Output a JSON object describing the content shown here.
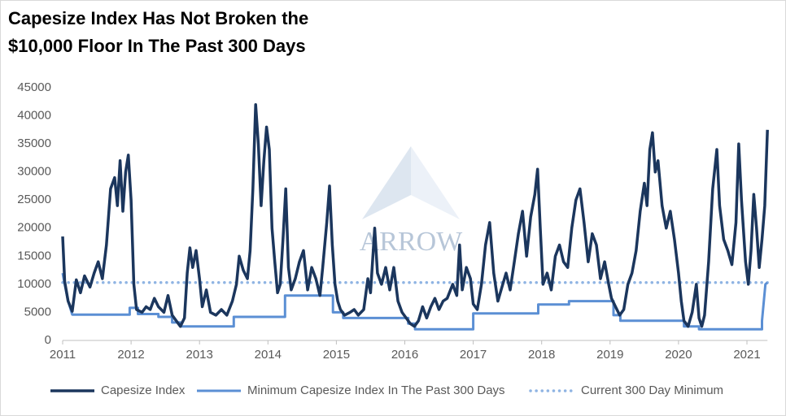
{
  "chart_data": {
    "type": "line",
    "title": [
      "Capesize Index Has Not Broken the",
      "$10,000 Floor In The Past 300 Days"
    ],
    "watermark": "ARROW",
    "xlim": [
      2011,
      2021.3
    ],
    "xticks": [
      2011,
      2012,
      2013,
      2014,
      2015,
      2016,
      2017,
      2018,
      2019,
      2020,
      2021
    ],
    "ylim": [
      0,
      45000
    ],
    "yticks": [
      0,
      5000,
      10000,
      15000,
      20000,
      25000,
      30000,
      35000,
      40000,
      45000
    ],
    "grid": false,
    "legend": "bottom",
    "series": [
      {
        "name": "Capesize Index",
        "color": "#1b365d",
        "style": "solid",
        "x": [
          2011.0,
          2011.03,
          2011.08,
          2011.14,
          2011.2,
          2011.26,
          2011.32,
          2011.4,
          2011.46,
          2011.52,
          2011.58,
          2011.64,
          2011.7,
          2011.76,
          2011.8,
          2011.84,
          2011.88,
          2011.92,
          2011.96,
          2012.0,
          2012.04,
          2012.08,
          2012.16,
          2012.22,
          2012.28,
          2012.34,
          2012.4,
          2012.48,
          2012.54,
          2012.6,
          2012.66,
          2012.72,
          2012.78,
          2012.82,
          2012.86,
          2012.9,
          2012.95,
          2013.0,
          2013.04,
          2013.1,
          2013.16,
          2013.24,
          2013.32,
          2013.4,
          2013.48,
          2013.54,
          2013.58,
          2013.64,
          2013.7,
          2013.74,
          2013.78,
          2013.82,
          2013.86,
          2013.9,
          2013.94,
          2013.98,
          2014.02,
          2014.06,
          2014.1,
          2014.14,
          2014.18,
          2014.22,
          2014.26,
          2014.3,
          2014.34,
          2014.4,
          2014.46,
          2014.52,
          2014.58,
          2014.64,
          2014.7,
          2014.76,
          2014.8,
          2014.86,
          2014.9,
          2014.94,
          2014.98,
          2015.02,
          2015.06,
          2015.12,
          2015.2,
          2015.26,
          2015.32,
          2015.4,
          2015.46,
          2015.5,
          2015.56,
          2015.6,
          2015.66,
          2015.72,
          2015.78,
          2015.84,
          2015.9,
          2015.96,
          2016.02,
          2016.08,
          2016.14,
          2016.2,
          2016.26,
          2016.32,
          2016.38,
          2016.44,
          2016.5,
          2016.56,
          2016.62,
          2016.7,
          2016.76,
          2016.8,
          2016.84,
          2016.9,
          2016.96,
          2017.0,
          2017.06,
          2017.12,
          2017.18,
          2017.24,
          2017.3,
          2017.36,
          2017.42,
          2017.48,
          2017.54,
          2017.6,
          2017.66,
          2017.72,
          2017.78,
          2017.84,
          2017.9,
          2017.94,
          2017.98,
          2018.02,
          2018.08,
          2018.14,
          2018.2,
          2018.26,
          2018.32,
          2018.38,
          2018.44,
          2018.5,
          2018.56,
          2018.62,
          2018.68,
          2018.74,
          2018.8,
          2018.86,
          2018.92,
          2018.98,
          2019.02,
          2019.08,
          2019.14,
          2019.2,
          2019.26,
          2019.32,
          2019.38,
          2019.44,
          2019.5,
          2019.54,
          2019.58,
          2019.62,
          2019.66,
          2019.7,
          2019.76,
          2019.82,
          2019.88,
          2019.94,
          2020.0,
          2020.04,
          2020.08,
          2020.14,
          2020.2,
          2020.26,
          2020.3,
          2020.34,
          2020.38,
          2020.44,
          2020.5,
          2020.56,
          2020.6,
          2020.66,
          2020.72,
          2020.78,
          2020.84,
          2020.88,
          2020.92,
          2020.98,
          2021.02,
          2021.06,
          2021.1,
          2021.14,
          2021.18,
          2021.22,
          2021.26,
          2021.3
        ],
        "values": [
          18500,
          10500,
          7000,
          5200,
          10800,
          8500,
          11500,
          9500,
          12000,
          14000,
          11000,
          17000,
          27000,
          29000,
          24000,
          32000,
          23000,
          30000,
          33000,
          25000,
          10000,
          5500,
          5000,
          6000,
          5500,
          7500,
          6000,
          5000,
          8000,
          4500,
          3500,
          2500,
          4000,
          12000,
          16500,
          13000,
          16000,
          11000,
          6000,
          9000,
          5000,
          4500,
          5500,
          4500,
          7000,
          10000,
          15000,
          12500,
          11000,
          16000,
          27000,
          42000,
          35000,
          24000,
          32000,
          38000,
          34000,
          20000,
          14000,
          8500,
          10000,
          18000,
          27000,
          13000,
          9000,
          11000,
          14000,
          16000,
          9000,
          13000,
          11000,
          8000,
          13000,
          21000,
          27500,
          17000,
          10000,
          7000,
          5500,
          4500,
          5000,
          5500,
          4500,
          5500,
          11000,
          8500,
          20000,
          12000,
          10000,
          13000,
          9000,
          13000,
          7000,
          5000,
          4000,
          3000,
          2500,
          3500,
          6000,
          4000,
          6000,
          7500,
          5500,
          7000,
          7500,
          10000,
          8000,
          17000,
          9000,
          13000,
          11000,
          6500,
          5500,
          10000,
          17000,
          21000,
          12000,
          7000,
          9500,
          12000,
          9000,
          14000,
          19000,
          23000,
          15000,
          22000,
          26000,
          30500,
          20000,
          10000,
          12000,
          9000,
          15000,
          17000,
          14000,
          13000,
          20000,
          25000,
          27000,
          21000,
          14000,
          19000,
          17000,
          11000,
          14000,
          10000,
          7500,
          6000,
          4500,
          5500,
          10000,
          12000,
          16000,
          23000,
          28000,
          24000,
          34000,
          37000,
          30000,
          32000,
          24000,
          20000,
          23000,
          18000,
          12000,
          7000,
          3500,
          2500,
          5000,
          10000,
          4000,
          2500,
          4500,
          14000,
          27000,
          34000,
          24000,
          18000,
          16000,
          13500,
          21000,
          35000,
          25000,
          14000,
          10000,
          16000,
          26000,
          20000,
          13000,
          18000,
          24000,
          37500
        ]
      },
      {
        "name": "Minimum Capesize Index In The Past 300 Days",
        "color": "#5b8fd4",
        "style": "solid",
        "x": [
          2011.0,
          2011.03,
          2011.08,
          2011.14,
          2011.98,
          2011.98,
          2012.1,
          2012.1,
          2012.4,
          2012.4,
          2012.6,
          2012.6,
          2012.72,
          2012.72,
          2013.5,
          2013.5,
          2014.25,
          2014.25,
          2014.95,
          2014.95,
          2015.1,
          2015.1,
          2016.05,
          2016.05,
          2016.15,
          2016.15,
          2017.0,
          2017.0,
          2017.95,
          2017.95,
          2018.4,
          2018.4,
          2019.05,
          2019.05,
          2019.15,
          2019.15,
          2020.08,
          2020.08,
          2020.3,
          2020.3,
          2021.22,
          2021.22,
          2021.27,
          2021.3
        ],
        "values": [
          12000,
          10000,
          7000,
          4600,
          4600,
          5800,
          5800,
          4700,
          4700,
          4200,
          4200,
          3200,
          3200,
          2500,
          2500,
          4200,
          4200,
          8000,
          8000,
          5000,
          5000,
          4000,
          4000,
          3000,
          3000,
          2000,
          2000,
          4800,
          4800,
          6400,
          6400,
          7000,
          7000,
          4500,
          4500,
          3500,
          3500,
          2500,
          2500,
          2000,
          2000,
          3500,
          10000,
          10300
        ]
      },
      {
        "name": "Current 300 Day Minimum",
        "color": "#8fb4e3",
        "style": "dotted",
        "x": [
          2011,
          2021.3
        ],
        "values": [
          10300,
          10300
        ]
      }
    ]
  }
}
